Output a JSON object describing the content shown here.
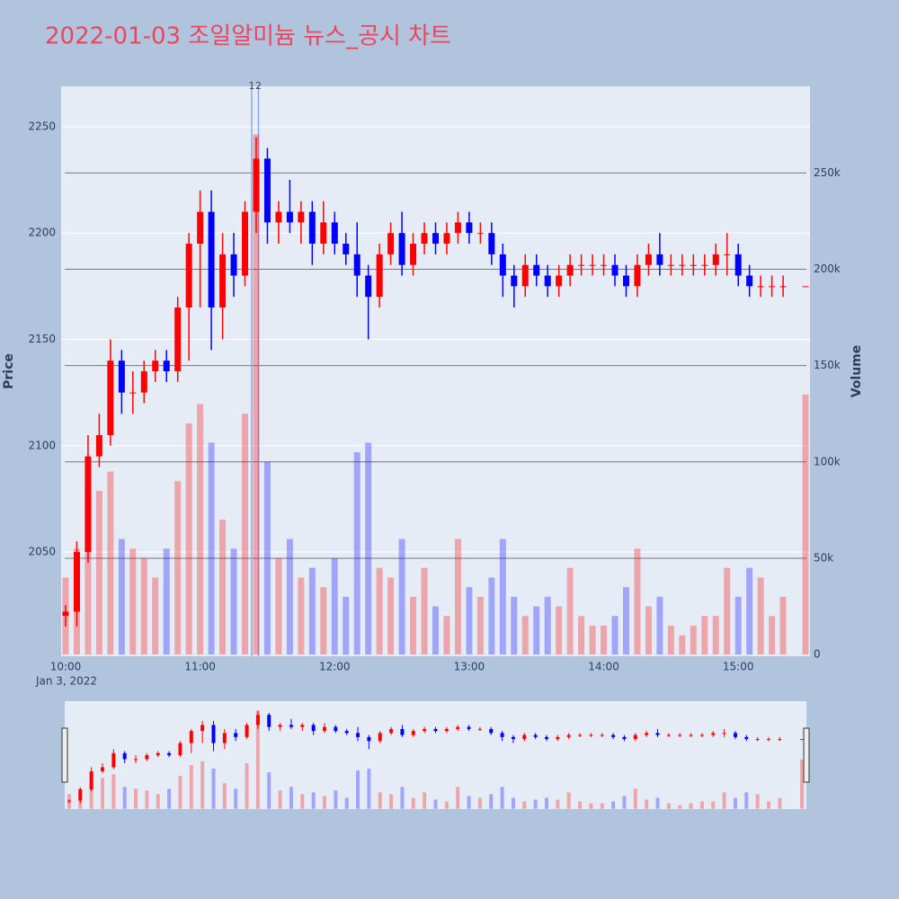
{
  "chart_data": {
    "type": "candlestick",
    "title": "2022-01-03 조일알미늄 뉴스_공시 차트",
    "y_title": "Price",
    "y2_title": "Volume",
    "x_date_label": "Jan 3, 2022",
    "increasing_color": "#ff0000",
    "decreasing_color": "#0000ff",
    "x": [
      "10:00",
      "10:05",
      "10:10",
      "10:15",
      "10:20",
      "10:25",
      "10:30",
      "10:35",
      "10:40",
      "10:45",
      "10:50",
      "10:55",
      "11:00",
      "11:05",
      "11:10",
      "11:15",
      "11:20",
      "11:25",
      "11:30",
      "11:35",
      "11:40",
      "11:45",
      "11:50",
      "11:55",
      "12:00",
      "12:05",
      "12:10",
      "12:15",
      "12:20",
      "12:25",
      "12:30",
      "12:35",
      "12:40",
      "12:45",
      "12:50",
      "12:55",
      "13:00",
      "13:05",
      "13:10",
      "13:15",
      "13:20",
      "13:25",
      "13:30",
      "13:35",
      "13:40",
      "13:45",
      "13:50",
      "13:55",
      "14:00",
      "14:05",
      "14:10",
      "14:15",
      "14:20",
      "14:25",
      "14:30",
      "14:35",
      "14:40",
      "14:45",
      "14:50",
      "14:55",
      "15:00",
      "15:05",
      "15:10",
      "15:15",
      "15:20",
      "15:30"
    ],
    "open": [
      2020,
      2022,
      2050,
      2095,
      2105,
      2140,
      2125,
      2125,
      2135,
      2140,
      2135,
      2165,
      2195,
      2210,
      2165,
      2190,
      2180,
      2210,
      2235,
      2205,
      2210,
      2205,
      2210,
      2195,
      2205,
      2195,
      2190,
      2180,
      2170,
      2190,
      2200,
      2185,
      2195,
      2200,
      2195,
      2200,
      2205,
      2200,
      2200,
      2190,
      2180,
      2175,
      2185,
      2180,
      2175,
      2180,
      2185,
      2185,
      2185,
      2185,
      2180,
      2175,
      2185,
      2190,
      2185,
      2185,
      2185,
      2185,
      2185,
      2190,
      2190,
      2180,
      2175,
      2175,
      2175,
      2175
    ],
    "high": [
      2025,
      2055,
      2105,
      2115,
      2150,
      2145,
      2135,
      2140,
      2145,
      2145,
      2170,
      2200,
      2220,
      2220,
      2200,
      2200,
      2215,
      2245,
      2240,
      2215,
      2225,
      2215,
      2215,
      2215,
      2210,
      2200,
      2205,
      2185,
      2195,
      2205,
      2210,
      2200,
      2205,
      2205,
      2205,
      2210,
      2210,
      2205,
      2205,
      2195,
      2185,
      2190,
      2190,
      2185,
      2185,
      2190,
      2190,
      2190,
      2190,
      2190,
      2185,
      2190,
      2195,
      2200,
      2190,
      2190,
      2190,
      2190,
      2195,
      2200,
      2195,
      2185,
      2180,
      2180,
      2180,
      2175
    ],
    "low": [
      2015,
      2015,
      2045,
      2090,
      2100,
      2115,
      2115,
      2120,
      2130,
      2130,
      2130,
      2140,
      2165,
      2145,
      2150,
      2170,
      2175,
      2200,
      2195,
      2195,
      2200,
      2195,
      2185,
      2190,
      2190,
      2185,
      2170,
      2150,
      2165,
      2185,
      2180,
      2180,
      2190,
      2190,
      2190,
      2195,
      2195,
      2195,
      2185,
      2170,
      2165,
      2170,
      2175,
      2170,
      2170,
      2175,
      2180,
      2180,
      2180,
      2175,
      2170,
      2170,
      2180,
      2180,
      2180,
      2180,
      2180,
      2180,
      2180,
      2180,
      2175,
      2170,
      2170,
      2170,
      2170,
      2175
    ],
    "close": [
      2022,
      2050,
      2095,
      2105,
      2140,
      2125,
      2125,
      2135,
      2140,
      2135,
      2165,
      2195,
      2210,
      2165,
      2190,
      2180,
      2210,
      2235,
      2205,
      2210,
      2205,
      2210,
      2195,
      2205,
      2195,
      2190,
      2180,
      2170,
      2190,
      2200,
      2185,
      2195,
      2200,
      2195,
      2200,
      2205,
      2200,
      2200,
      2190,
      2180,
      2175,
      2185,
      2180,
      2175,
      2180,
      2185,
      2185,
      2185,
      2185,
      2180,
      2175,
      2185,
      2190,
      2185,
      2185,
      2185,
      2185,
      2185,
      2190,
      2190,
      2180,
      2175,
      2175,
      2175,
      2175,
      2175
    ],
    "volume": [
      40000,
      55000,
      90000,
      85000,
      95000,
      60000,
      55000,
      50000,
      40000,
      55000,
      90000,
      120000,
      130000,
      110000,
      70000,
      55000,
      125000,
      270000,
      100000,
      50000,
      60000,
      40000,
      45000,
      35000,
      50000,
      30000,
      105000,
      110000,
      45000,
      40000,
      60000,
      30000,
      45000,
      25000,
      20000,
      60000,
      35000,
      30000,
      40000,
      60000,
      30000,
      20000,
      25000,
      30000,
      25000,
      45000,
      20000,
      15000,
      15000,
      20000,
      35000,
      55000,
      25000,
      30000,
      15000,
      10000,
      15000,
      20000,
      20000,
      45000,
      30000,
      45000,
      40000,
      20000,
      30000,
      135000
    ],
    "xlim": [
      "09:58",
      "15:32"
    ],
    "xticks": [
      "10:00",
      "11:00",
      "12:00",
      "13:00",
      "14:00",
      "15:00"
    ],
    "ylim": [
      2001,
      2269
    ],
    "yticks": [
      2050,
      2100,
      2150,
      2200,
      2250
    ],
    "y2lim": [
      -900,
      295000
    ],
    "y2ticks": [
      0,
      {
        "value": 50000,
        "label": "50k"
      },
      {
        "value": 100000,
        "label": "100k"
      },
      {
        "value": 150000,
        "label": "150k"
      },
      {
        "value": 200000,
        "label": "200k"
      },
      {
        "value": 250000,
        "label": "250k"
      }
    ],
    "annotations": [
      {
        "x": "11:23",
        "text": "1"
      },
      {
        "x": "11:26",
        "text": "2"
      }
    ],
    "grid": true
  }
}
